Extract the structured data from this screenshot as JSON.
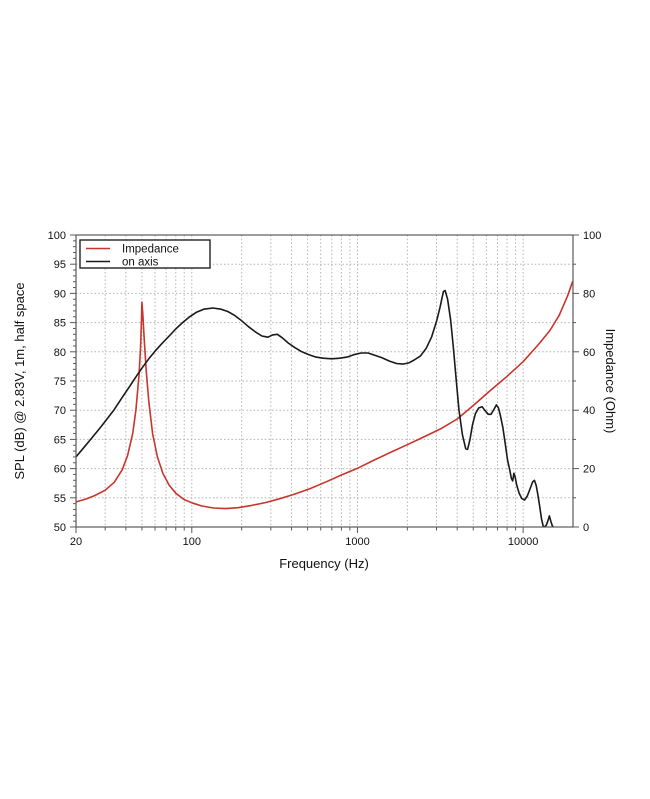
{
  "page": {
    "background": "#ffffff"
  },
  "chart_data": {
    "type": "line",
    "title": "",
    "xlabel": "Frequency (Hz)",
    "ylabel_left": "SPL (dB) @ 2.83V, 1m, half space",
    "ylabel_right": "Impedance (Ohm)",
    "x_scale": "log",
    "x_range": [
      20,
      20000
    ],
    "x_major_ticks": [
      20,
      100,
      1000,
      10000
    ],
    "x_minor_ticks": [
      30,
      40,
      50,
      60,
      70,
      80,
      90,
      200,
      300,
      400,
      500,
      600,
      700,
      800,
      900,
      2000,
      3000,
      4000,
      5000,
      6000,
      7000,
      8000,
      9000
    ],
    "y_left_range": [
      50,
      100
    ],
    "y_left_ticks": [
      50,
      55,
      60,
      65,
      70,
      75,
      80,
      85,
      90,
      95,
      100
    ],
    "y_right_range": [
      0,
      100
    ],
    "y_right_ticks": [
      0,
      20,
      40,
      60,
      80,
      100
    ],
    "grid": "dotted",
    "grid_color": "#b3b3b3",
    "axis_color": "#5a5a5a",
    "legend_position": "top-left",
    "series": [
      {
        "name": "Impedance",
        "axis": "right",
        "color": "#c9342b",
        "points": [
          [
            20,
            8.6
          ],
          [
            23,
            9.6
          ],
          [
            26,
            10.8
          ],
          [
            30,
            12.6
          ],
          [
            34,
            15.3
          ],
          [
            38,
            19.6
          ],
          [
            41,
            24.5
          ],
          [
            44,
            32
          ],
          [
            46,
            40
          ],
          [
            48,
            52
          ],
          [
            49,
            61
          ],
          [
            49.7,
            71
          ],
          [
            50,
            77
          ],
          [
            50.6,
            73
          ],
          [
            51.5,
            65
          ],
          [
            53,
            54
          ],
          [
            55,
            43
          ],
          [
            58,
            32
          ],
          [
            62,
            24
          ],
          [
            67,
            18.3
          ],
          [
            73,
            14.3
          ],
          [
            80,
            11.6
          ],
          [
            90,
            9.4
          ],
          [
            100,
            8.3
          ],
          [
            115,
            7.2
          ],
          [
            135,
            6.5
          ],
          [
            160,
            6.3
          ],
          [
            190,
            6.6
          ],
          [
            230,
            7.4
          ],
          [
            280,
            8.4
          ],
          [
            340,
            9.7
          ],
          [
            420,
            11.3
          ],
          [
            520,
            13.2
          ],
          [
            650,
            15.5
          ],
          [
            800,
            17.8
          ],
          [
            1000,
            20.1
          ],
          [
            1250,
            22.8
          ],
          [
            1600,
            25.7
          ],
          [
            2000,
            28.2
          ],
          [
            2500,
            30.8
          ],
          [
            3200,
            33.7
          ],
          [
            4000,
            37.0
          ],
          [
            5000,
            41.6
          ],
          [
            6300,
            46.6
          ],
          [
            8000,
            51.6
          ],
          [
            10000,
            56.6
          ],
          [
            12500,
            62.8
          ],
          [
            14500,
            67.3
          ],
          [
            16500,
            72.5
          ],
          [
            18500,
            79.0
          ],
          [
            19900,
            84.0
          ]
        ]
      },
      {
        "name": "on axis",
        "axis": "left",
        "color": "#1a1a1a",
        "points": [
          [
            20,
            62.0
          ],
          [
            22,
            63.4
          ],
          [
            25,
            65.3
          ],
          [
            28,
            67.0
          ],
          [
            31,
            68.6
          ],
          [
            34,
            70.1
          ],
          [
            38,
            72.2
          ],
          [
            42,
            74.0
          ],
          [
            46,
            75.7
          ],
          [
            50,
            77.2
          ],
          [
            55,
            78.8
          ],
          [
            60,
            80.1
          ],
          [
            66,
            81.4
          ],
          [
            73,
            82.7
          ],
          [
            80,
            83.9
          ],
          [
            88,
            85.0
          ],
          [
            97,
            86.0
          ],
          [
            107,
            86.8
          ],
          [
            118,
            87.3
          ],
          [
            134,
            87.5
          ],
          [
            150,
            87.3
          ],
          [
            165,
            86.9
          ],
          [
            182,
            86.2
          ],
          [
            200,
            85.3
          ],
          [
            220,
            84.3
          ],
          [
            242,
            83.4
          ],
          [
            265,
            82.7
          ],
          [
            288,
            82.5
          ],
          [
            308,
            82.9
          ],
          [
            328,
            83.0
          ],
          [
            352,
            82.4
          ],
          [
            382,
            81.5
          ],
          [
            420,
            80.7
          ],
          [
            462,
            80.0
          ],
          [
            510,
            79.5
          ],
          [
            562,
            79.1
          ],
          [
            620,
            78.9
          ],
          [
            700,
            78.8
          ],
          [
            782,
            78.9
          ],
          [
            865,
            79.1
          ],
          [
            950,
            79.5
          ],
          [
            1050,
            79.8
          ],
          [
            1160,
            79.8
          ],
          [
            1270,
            79.4
          ],
          [
            1400,
            79.0
          ],
          [
            1560,
            78.4
          ],
          [
            1720,
            78.0
          ],
          [
            1880,
            77.9
          ],
          [
            2040,
            78.1
          ],
          [
            2200,
            78.6
          ],
          [
            2400,
            79.3
          ],
          [
            2600,
            80.6
          ],
          [
            2800,
            82.5
          ],
          [
            3000,
            85.2
          ],
          [
            3150,
            87.6
          ],
          [
            3300,
            90.3
          ],
          [
            3380,
            90.5
          ],
          [
            3500,
            89.0
          ],
          [
            3650,
            85.5
          ],
          [
            3800,
            80.5
          ],
          [
            3950,
            75.0
          ],
          [
            4100,
            70.0
          ],
          [
            4300,
            65.8
          ],
          [
            4500,
            63.4
          ],
          [
            4620,
            63.3
          ],
          [
            4780,
            65.0
          ],
          [
            4950,
            67.5
          ],
          [
            5150,
            69.4
          ],
          [
            5400,
            70.4
          ],
          [
            5650,
            70.6
          ],
          [
            5900,
            69.9
          ],
          [
            6150,
            69.3
          ],
          [
            6400,
            69.3
          ],
          [
            6650,
            70.1
          ],
          [
            6900,
            70.9
          ],
          [
            7100,
            70.4
          ],
          [
            7300,
            69.0
          ],
          [
            7550,
            67.0
          ],
          [
            7800,
            64.2
          ],
          [
            8050,
            61.5
          ],
          [
            8300,
            59.8
          ],
          [
            8500,
            58.3
          ],
          [
            8650,
            57.9
          ],
          [
            8800,
            59.2
          ],
          [
            8950,
            58.6
          ],
          [
            9150,
            57.2
          ],
          [
            9450,
            55.8
          ],
          [
            9800,
            54.9
          ],
          [
            10200,
            54.6
          ],
          [
            10600,
            55.3
          ],
          [
            11000,
            56.5
          ],
          [
            11400,
            57.7
          ],
          [
            11700,
            58.0
          ],
          [
            12000,
            57.1
          ],
          [
            12300,
            55.4
          ],
          [
            12600,
            53.4
          ],
          [
            12900,
            51.4
          ],
          [
            13200,
            50.2
          ],
          [
            13500,
            50.0
          ],
          [
            13800,
            50.3
          ],
          [
            14100,
            51.0
          ],
          [
            14400,
            51.9
          ],
          [
            14700,
            51.0
          ],
          [
            15000,
            50.2
          ],
          [
            15200,
            50.0
          ]
        ]
      }
    ]
  }
}
